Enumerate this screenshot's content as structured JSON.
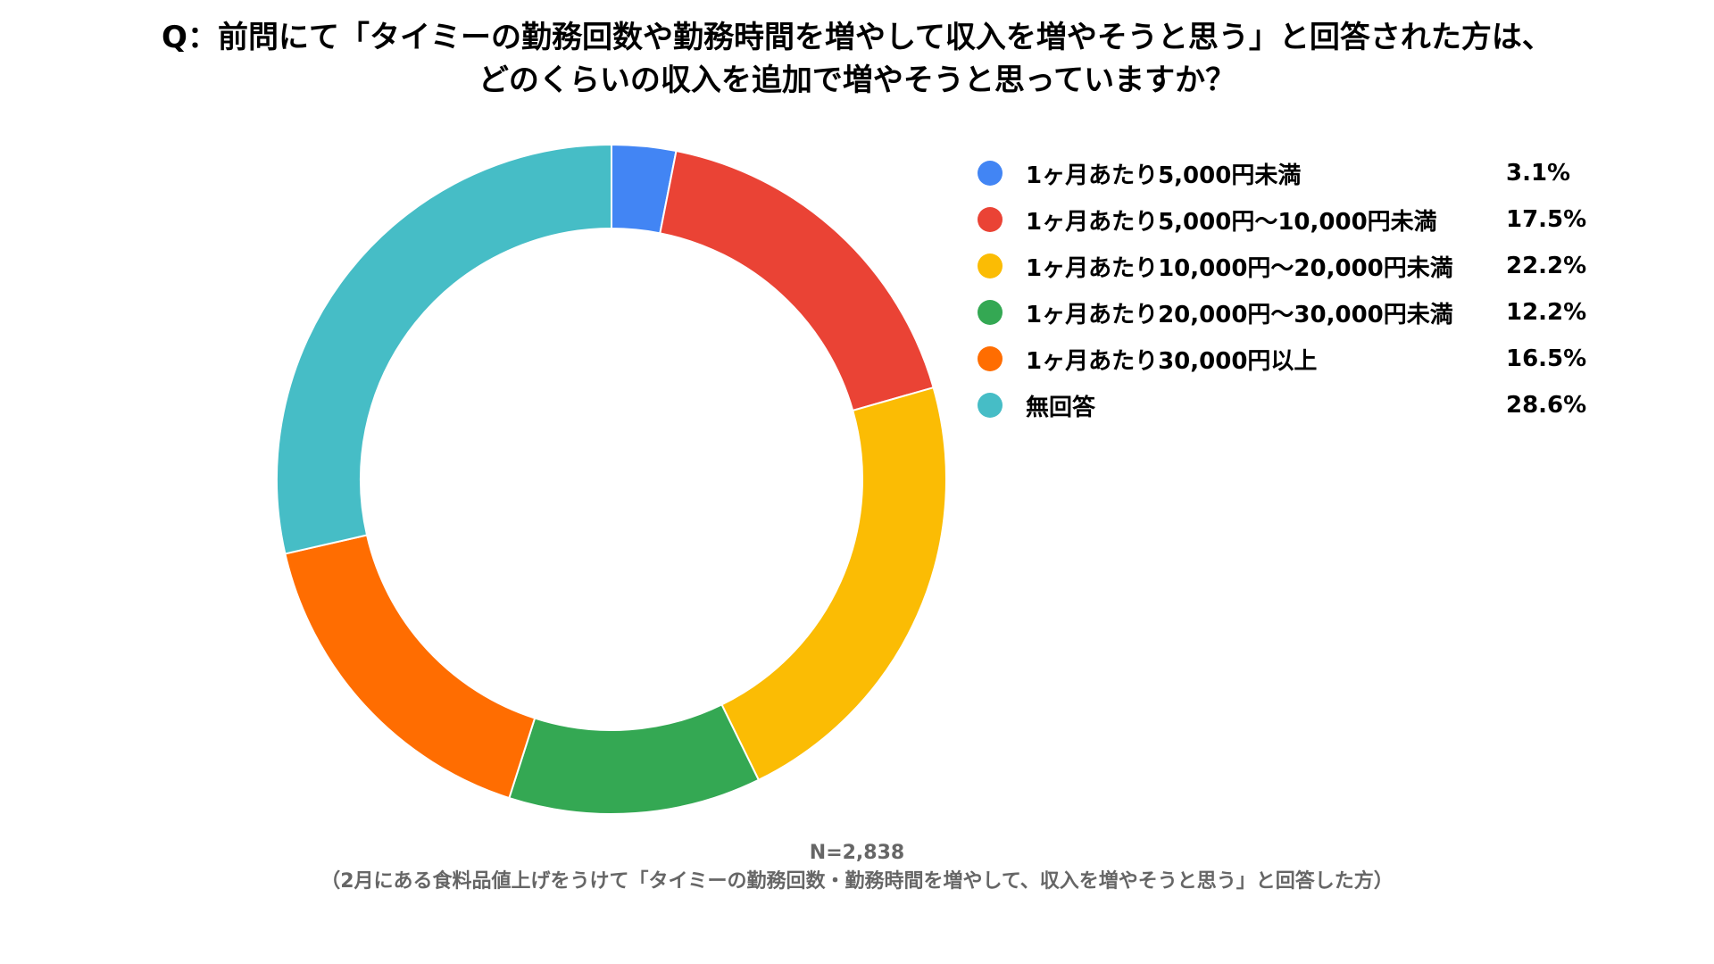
{
  "chart_data": {
    "type": "pie",
    "title_line1": "Q：前問にて「タイミーの勤務回数や勤務時間を増やして収入を増やそうと思う」と回答された方は、",
    "title_line2": "どのくらいの収入を追加で増やそうと思っていますか？",
    "series": [
      {
        "name": "1ヶ月あたり5,000円未満",
        "value": 3.1,
        "label": "3.1%",
        "color": "#4285F4"
      },
      {
        "name": "1ヶ月あたり5,000円〜10,000円未満",
        "value": 17.5,
        "label": "17.5%",
        "color": "#EA4335"
      },
      {
        "name": "1ヶ月あたり10,000円〜20,000円未満",
        "value": 22.2,
        "label": "22.2%",
        "color": "#FBBC04"
      },
      {
        "name": "1ヶ月あたり20,000円〜30,000円未満",
        "value": 12.2,
        "label": "12.2%",
        "color": "#34A853"
      },
      {
        "name": "1ヶ月あたり30,000円以上",
        "value": 16.5,
        "label": "16.5%",
        "color": "#FF6D01"
      },
      {
        "name": "無回答",
        "value": 28.6,
        "label": "28.6%",
        "color": "#46BDC6"
      }
    ],
    "legend_placement": "right",
    "donut": true,
    "footnote_line1": "N=2,838",
    "footnote_line2": "（2月にある食料品値上げをうけて「タイミーの勤務回数・勤務時間を増やして、収入を増やそうと思う」と回答した方）"
  }
}
